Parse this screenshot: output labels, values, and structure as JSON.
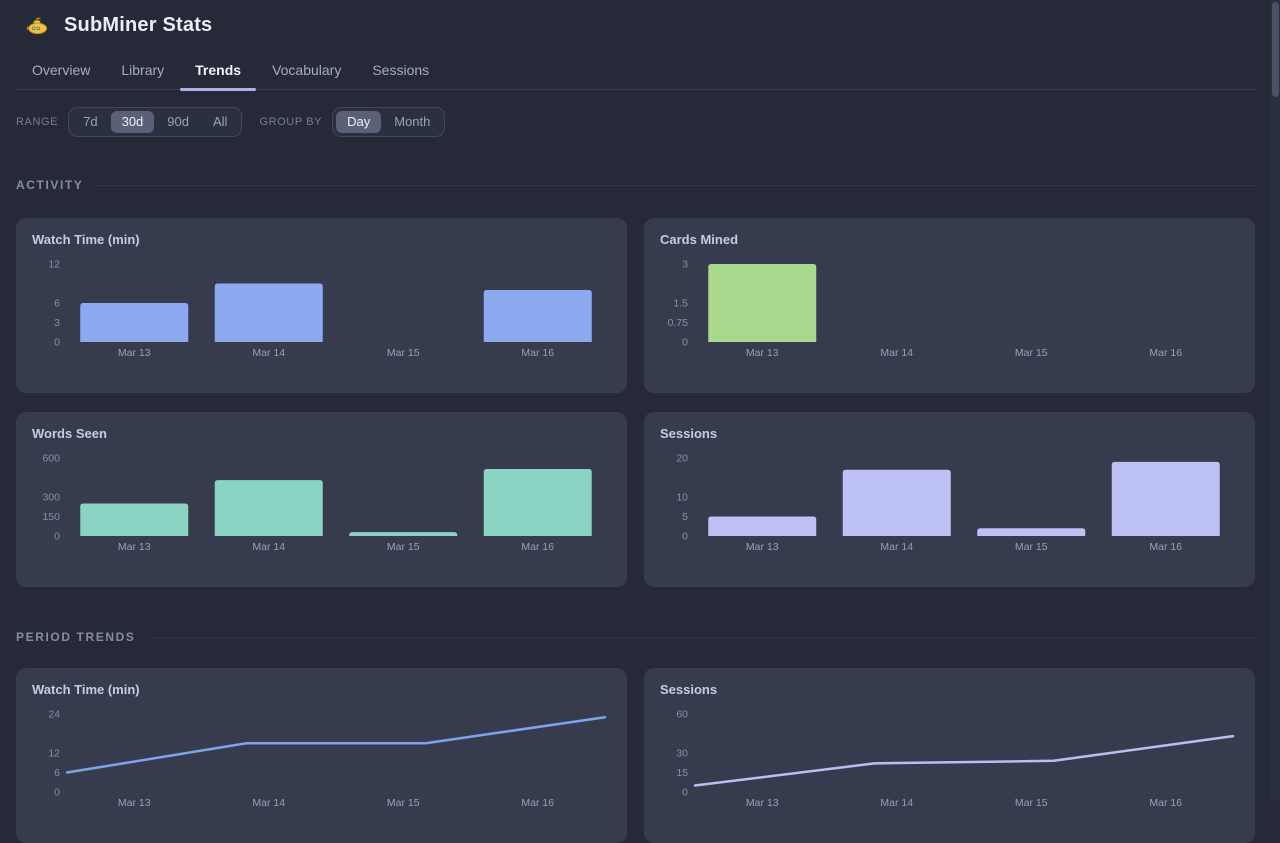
{
  "app": {
    "title": "SubMiner Stats",
    "icon": "submarine-icon"
  },
  "tabs": [
    {
      "label": "Overview",
      "active": false
    },
    {
      "label": "Library",
      "active": false
    },
    {
      "label": "Trends",
      "active": true
    },
    {
      "label": "Vocabulary",
      "active": false
    },
    {
      "label": "Sessions",
      "active": false
    }
  ],
  "controls": {
    "range": {
      "label": "RANGE",
      "options": [
        "7d",
        "30d",
        "90d",
        "All"
      ],
      "selected": "30d"
    },
    "group_by": {
      "label": "GROUP BY",
      "options": [
        "Day",
        "Month"
      ],
      "selected": "Day"
    }
  },
  "sections": {
    "activity": "ACTIVITY",
    "period_trends": "PERIOD TRENDS"
  },
  "chart_data": [
    {
      "type": "bar",
      "section": "ACTIVITY",
      "title": "Watch Time (min)",
      "categories": [
        "Mar 13",
        "Mar 14",
        "Mar 15",
        "Mar 16"
      ],
      "values": [
        6,
        9,
        0,
        8
      ],
      "yticks": [
        0,
        3,
        6,
        12
      ],
      "ylim": [
        0,
        12
      ],
      "color": "#8DA9EF"
    },
    {
      "type": "bar",
      "section": "ACTIVITY",
      "title": "Cards Mined",
      "categories": [
        "Mar 13",
        "Mar 14",
        "Mar 15",
        "Mar 16"
      ],
      "values": [
        3,
        0,
        0,
        0
      ],
      "yticks": [
        0,
        0.75,
        1.5,
        3
      ],
      "ylim": [
        0,
        3
      ],
      "color": "#A8D98C"
    },
    {
      "type": "bar",
      "section": "ACTIVITY",
      "title": "Words Seen",
      "categories": [
        "Mar 13",
        "Mar 14",
        "Mar 15",
        "Mar 16"
      ],
      "values": [
        250,
        430,
        30,
        515
      ],
      "yticks": [
        0,
        150,
        300,
        600
      ],
      "ylim": [
        0,
        600
      ],
      "color": "#8BD4C4"
    },
    {
      "type": "bar",
      "section": "ACTIVITY",
      "title": "Sessions",
      "categories": [
        "Mar 13",
        "Mar 14",
        "Mar 15",
        "Mar 16"
      ],
      "values": [
        5,
        17,
        2,
        19
      ],
      "yticks": [
        0,
        5,
        10,
        20
      ],
      "ylim": [
        0,
        20
      ],
      "color": "#BDC1F3"
    },
    {
      "type": "line",
      "section": "PERIOD TRENDS",
      "title": "Watch Time (min)",
      "categories": [
        "Mar 13",
        "Mar 14",
        "Mar 15",
        "Mar 16"
      ],
      "values": [
        6,
        15,
        15,
        23
      ],
      "yticks": [
        0,
        6,
        12,
        24
      ],
      "ylim": [
        0,
        24
      ],
      "color": "#7CA4EA"
    },
    {
      "type": "line",
      "section": "PERIOD TRENDS",
      "title": "Sessions",
      "categories": [
        "Mar 13",
        "Mar 14",
        "Mar 15",
        "Mar 16"
      ],
      "values": [
        5,
        22,
        24,
        43
      ],
      "yticks": [
        0,
        15,
        30,
        60
      ],
      "ylim": [
        0,
        60
      ],
      "color": "#B9BFF0"
    }
  ],
  "colors": {
    "page_bg": "#252938",
    "card_bg": "#363C4E",
    "tab_underline": "#A9B3EA",
    "scrollbar_thumb": "#4B5268"
  }
}
